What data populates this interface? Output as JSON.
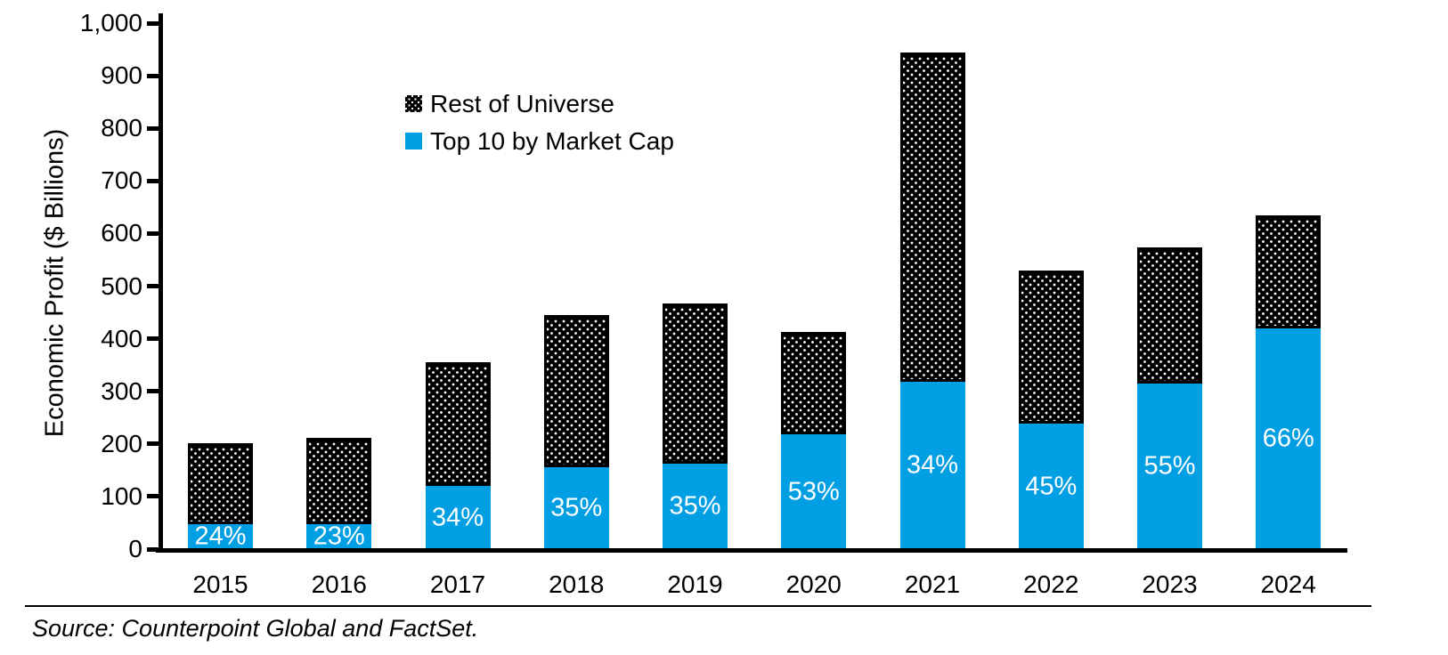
{
  "chart_data": {
    "type": "bar",
    "stacked": true,
    "categories": [
      "2015",
      "2016",
      "2017",
      "2018",
      "2019",
      "2020",
      "2021",
      "2022",
      "2023",
      "2024"
    ],
    "series": [
      {
        "name": "Top 10 by Market Cap",
        "color": "#009FE3",
        "values": [
          48,
          48,
          120,
          155,
          163,
          218,
          318,
          238,
          315,
          420
        ],
        "labels": [
          "24%",
          "23%",
          "34%",
          "35%",
          "35%",
          "53%",
          "34%",
          "45%",
          "55%",
          "66%"
        ]
      },
      {
        "name": "Rest of Universe",
        "color": "#000000",
        "pattern": "white-dots-on-black",
        "values": [
          153,
          163,
          235,
          290,
          304,
          195,
          627,
          292,
          258,
          215
        ]
      }
    ],
    "totals": [
      201,
      211,
      355,
      445,
      467,
      413,
      945,
      530,
      573,
      635
    ],
    "title": "",
    "xlabel": "",
    "ylabel": "Economic Profit ($ Billions)",
    "ylim": [
      0,
      1000
    ],
    "ytick_step": 100,
    "ytick_labels": [
      "0",
      "100",
      "200",
      "300",
      "400",
      "500",
      "600",
      "700",
      "800",
      "900",
      "1,000"
    ],
    "grid": false,
    "legend_position": "inside-top-left",
    "label_text_color": "#ffffff"
  },
  "footer": {
    "source": "Source: Counterpoint Global and FactSet."
  }
}
